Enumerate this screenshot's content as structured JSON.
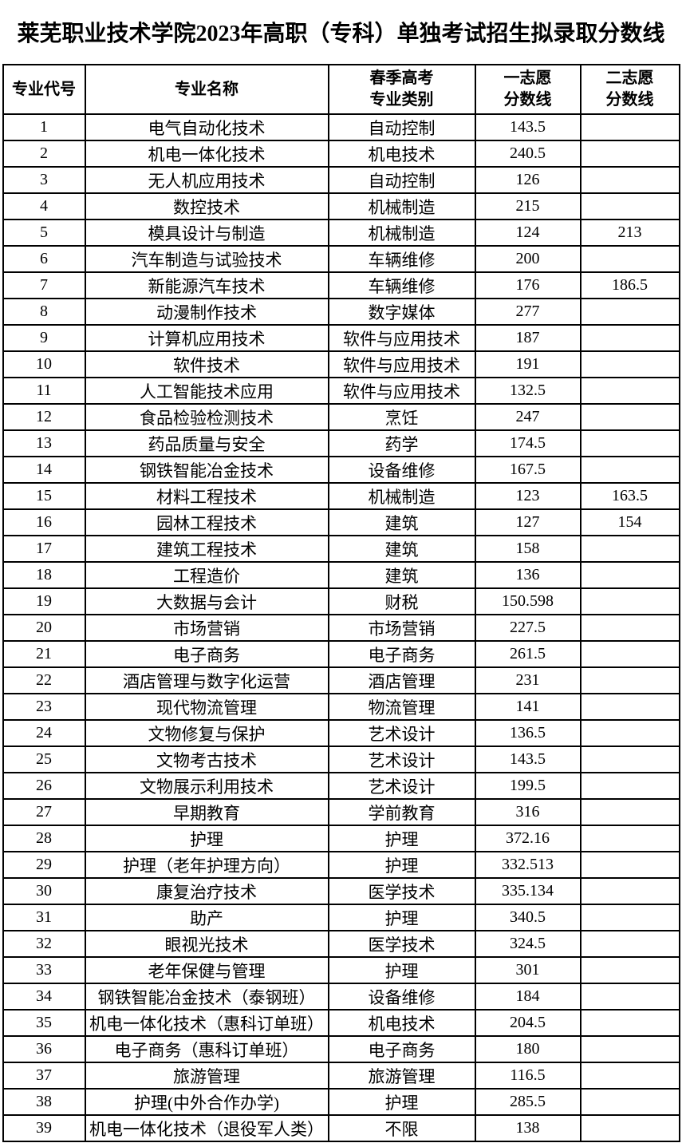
{
  "title": "莱芜职业技术学院2023年高职（专科）单独考试招生拟录取分数线",
  "table": {
    "columns": [
      {
        "key": "code",
        "label_lines": [
          "专业代号"
        ]
      },
      {
        "key": "name",
        "label_lines": [
          "专业名称"
        ]
      },
      {
        "key": "category",
        "label_lines": [
          "春季高考",
          "专业类别"
        ]
      },
      {
        "key": "first_choice",
        "label_lines": [
          "一志愿",
          "分数线"
        ]
      },
      {
        "key": "second_choice",
        "label_lines": [
          "二志愿",
          "分数线"
        ]
      }
    ],
    "rows": [
      [
        "1",
        "电气自动化技术",
        "自动控制",
        "143.5",
        ""
      ],
      [
        "2",
        "机电一体化技术",
        "机电技术",
        "240.5",
        ""
      ],
      [
        "3",
        "无人机应用技术",
        "自动控制",
        "126",
        ""
      ],
      [
        "4",
        "数控技术",
        "机械制造",
        "215",
        ""
      ],
      [
        "5",
        "模具设计与制造",
        "机械制造",
        "124",
        "213"
      ],
      [
        "6",
        "汽车制造与试验技术",
        "车辆维修",
        "200",
        ""
      ],
      [
        "7",
        "新能源汽车技术",
        "车辆维修",
        "176",
        "186.5"
      ],
      [
        "8",
        "动漫制作技术",
        "数字媒体",
        "277",
        ""
      ],
      [
        "9",
        "计算机应用技术",
        "软件与应用技术",
        "187",
        ""
      ],
      [
        "10",
        "软件技术",
        "软件与应用技术",
        "191",
        ""
      ],
      [
        "11",
        "人工智能技术应用",
        "软件与应用技术",
        "132.5",
        ""
      ],
      [
        "12",
        "食品检验检测技术",
        "烹饪",
        "247",
        ""
      ],
      [
        "13",
        "药品质量与安全",
        "药学",
        "174.5",
        ""
      ],
      [
        "14",
        "钢铁智能冶金技术",
        "设备维修",
        "167.5",
        ""
      ],
      [
        "15",
        "材料工程技术",
        "机械制造",
        "123",
        "163.5"
      ],
      [
        "16",
        "园林工程技术",
        "建筑",
        "127",
        "154"
      ],
      [
        "17",
        "建筑工程技术",
        "建筑",
        "158",
        ""
      ],
      [
        "18",
        "工程造价",
        "建筑",
        "136",
        ""
      ],
      [
        "19",
        "大数据与会计",
        "财税",
        "150.598",
        ""
      ],
      [
        "20",
        "市场营销",
        "市场营销",
        "227.5",
        ""
      ],
      [
        "21",
        "电子商务",
        "电子商务",
        "261.5",
        ""
      ],
      [
        "22",
        "酒店管理与数字化运营",
        "酒店管理",
        "231",
        ""
      ],
      [
        "23",
        "现代物流管理",
        "物流管理",
        "141",
        ""
      ],
      [
        "24",
        "文物修复与保护",
        "艺术设计",
        "136.5",
        ""
      ],
      [
        "25",
        "文物考古技术",
        "艺术设计",
        "143.5",
        ""
      ],
      [
        "26",
        "文物展示利用技术",
        "艺术设计",
        "199.5",
        ""
      ],
      [
        "27",
        "早期教育",
        "学前教育",
        "316",
        ""
      ],
      [
        "28",
        "护理",
        "护理",
        "372.16",
        ""
      ],
      [
        "29",
        "护理（老年护理方向）",
        "护理",
        "332.513",
        ""
      ],
      [
        "30",
        "康复治疗技术",
        "医学技术",
        "335.134",
        ""
      ],
      [
        "31",
        "助产",
        "护理",
        "340.5",
        ""
      ],
      [
        "32",
        "眼视光技术",
        "医学技术",
        "324.5",
        ""
      ],
      [
        "33",
        "老年保健与管理",
        "护理",
        "301",
        ""
      ],
      [
        "34",
        "钢铁智能冶金技术（泰钢班）",
        "设备维修",
        "184",
        ""
      ],
      [
        "35",
        "机电一体化技术（惠科订单班）",
        "机电技术",
        "204.5",
        ""
      ],
      [
        "36",
        "电子商务（惠科订单班）",
        "电子商务",
        "180",
        ""
      ],
      [
        "37",
        "旅游管理",
        "旅游管理",
        "116.5",
        ""
      ],
      [
        "38",
        "护理(中外合作办学)",
        "护理",
        "285.5",
        ""
      ],
      [
        "39",
        "机电一体化技术（退役军人类）",
        "不限",
        "138",
        ""
      ]
    ]
  }
}
